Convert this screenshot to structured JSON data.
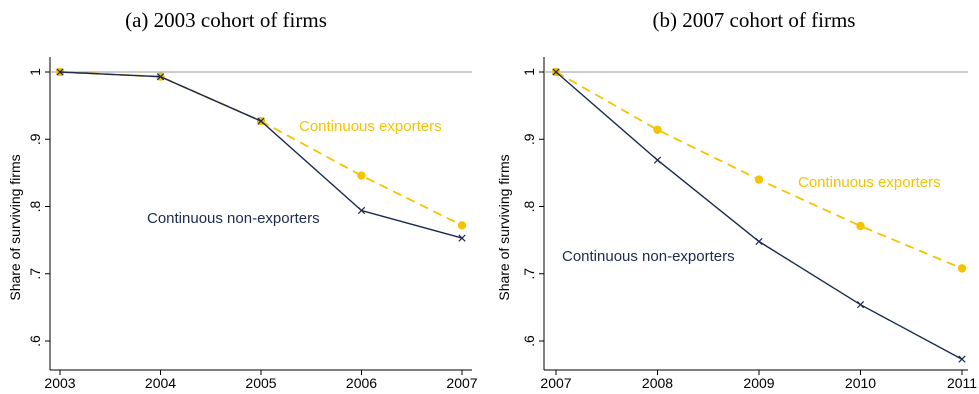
{
  "titles": {
    "a": "(a) 2003 cohort of firms",
    "b": "(b) 2007 cohort of firms"
  },
  "colors": {
    "exporters": "#f5c400",
    "non_exporters": "#1a2a50",
    "refline": "#999999",
    "axis": "#000000"
  },
  "chart_data": [
    {
      "type": "line",
      "title": "(a) 2003 cohort of firms",
      "xlabel": "",
      "ylabel": "Share of surviving firms",
      "categories": [
        "2003",
        "2004",
        "2005",
        "2006",
        "2007"
      ],
      "ylim": [
        0.55,
        1.0
      ],
      "yticks": [
        ".6",
        ".7",
        ".8",
        ".9",
        "1"
      ],
      "series": [
        {
          "name": "Continuous exporters",
          "values": [
            1.0,
            0.993,
            0.927,
            0.846,
            0.772
          ],
          "style": "dashed",
          "marker": "circle"
        },
        {
          "name": "Continuous non-exporters",
          "values": [
            1.0,
            0.993,
            0.927,
            0.794,
            0.753
          ],
          "style": "solid",
          "marker": "x"
        }
      ],
      "grid": false,
      "reference_line": 1.0
    },
    {
      "type": "line",
      "title": "(b) 2007 cohort of firms",
      "xlabel": "",
      "ylabel": "Share of surviving firms",
      "categories": [
        "2007",
        "2008",
        "2009",
        "2010",
        "2011"
      ],
      "ylim": [
        0.55,
        1.0
      ],
      "yticks": [
        ".6",
        ".7",
        ".8",
        ".9",
        "1"
      ],
      "series": [
        {
          "name": "Continuous exporters",
          "values": [
            1.0,
            0.914,
            0.84,
            0.771,
            0.708
          ],
          "style": "dashed",
          "marker": "circle"
        },
        {
          "name": "Continuous non-exporters",
          "values": [
            1.0,
            0.869,
            0.748,
            0.654,
            0.573
          ],
          "style": "solid",
          "marker": "x"
        }
      ],
      "grid": false,
      "reference_line": 1.0
    }
  ]
}
